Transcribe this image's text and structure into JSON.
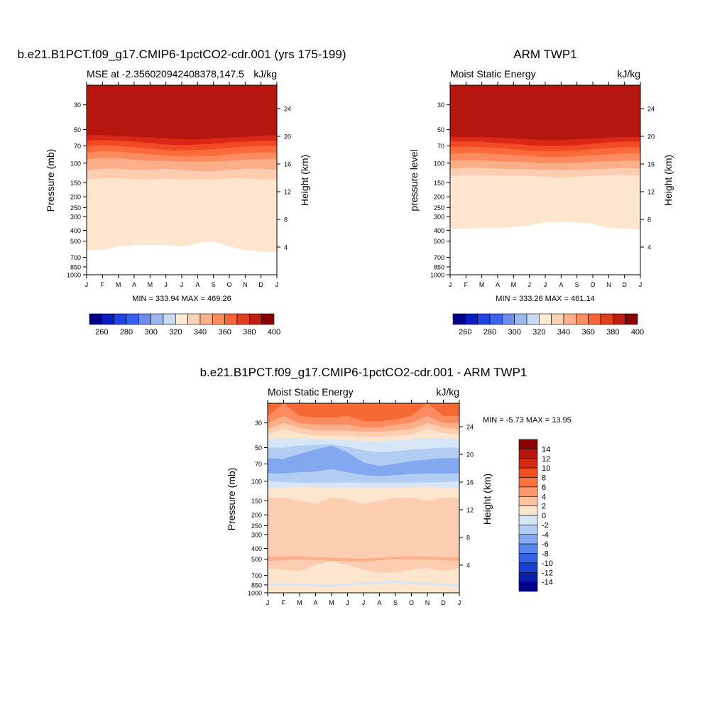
{
  "chart_data": [
    {
      "type": "heatmap",
      "title": "b.e21.B1PCT.f09_g17.CMIP6-1pctCO2-cdr.001 (yrs 175-199)",
      "subtitle_left": "MSE at -2.356020942408378,147.5",
      "units": "kJ/kg",
      "ylabel": "Pressure (mb)",
      "ylabel_right": "Height (km)",
      "x_ticks": [
        "J",
        "F",
        "M",
        "A",
        "M",
        "J",
        "J",
        "A",
        "S",
        "O",
        "N",
        "D",
        "J"
      ],
      "y_ticks": [
        "30",
        "50",
        "70",
        "100",
        "150",
        "200",
        "250",
        "300",
        "400",
        "500",
        "700",
        "850",
        "1000"
      ],
      "y_ticks_right": [
        "24",
        "20",
        "16",
        "12",
        "8",
        "4"
      ],
      "min_max_text": "MIN = 333.94 MAX = 469.26",
      "levels": [
        260,
        270,
        280,
        290,
        300,
        310,
        320,
        330,
        340,
        350,
        360,
        370,
        380,
        390,
        400
      ],
      "colorbar_labels": [
        "260",
        "280",
        "300",
        "320",
        "340",
        "360",
        "380",
        "400"
      ],
      "colorbar_orientation": "horizontal",
      "bands": [
        {
          "value": 335,
          "color": "#FEE5CE",
          "boundary_p": [
            600,
            600,
            560,
            540,
            540,
            540,
            560,
            520,
            500,
            560,
            600,
            620,
            620
          ]
        },
        {
          "value": 345,
          "color": "#FDCDB1",
          "boundary_p": [
            140,
            137,
            137,
            140,
            140,
            138,
            140,
            140,
            140,
            137,
            137,
            140,
            140
          ]
        },
        {
          "value": 355,
          "color": "#FCAE89",
          "boundary_p": [
            115,
            112,
            112,
            115,
            115,
            112,
            115,
            118,
            118,
            115,
            112,
            112,
            115
          ]
        },
        {
          "value": 365,
          "color": "#FC8C5F",
          "boundary_p": [
            92,
            90,
            90,
            93,
            95,
            95,
            97,
            97,
            97,
            95,
            93,
            92,
            92
          ]
        },
        {
          "value": 375,
          "color": "#FB6A3B",
          "boundary_p": [
            80,
            78,
            79,
            81,
            83,
            85,
            87,
            87,
            86,
            83,
            81,
            80,
            80
          ]
        },
        {
          "value": 385,
          "color": "#F14A24",
          "boundary_p": [
            70,
            69,
            70,
            72,
            74,
            76,
            77,
            76,
            75,
            73,
            71,
            70,
            70
          ]
        },
        {
          "value": 395,
          "color": "#DB2717",
          "boundary_p": [
            63,
            62,
            63,
            64,
            66,
            68,
            69,
            68,
            67,
            65,
            64,
            63,
            63
          ]
        },
        {
          "value": 405,
          "color": "#B5160D",
          "boundary_p": [
            56,
            56,
            57,
            58,
            59,
            60,
            61,
            61,
            60,
            59,
            58,
            57,
            56
          ]
        },
        {
          "value": 415,
          "color": "#8B0000",
          "boundary_p": [
            20,
            20,
            20,
            20,
            20,
            20,
            20,
            20,
            20,
            20,
            20,
            20,
            20
          ]
        }
      ]
    },
    {
      "type": "heatmap",
      "title": "ARM TWP1",
      "subtitle_left": "Moist Static Energy",
      "units": "kJ/kg",
      "ylabel": "pressure level",
      "ylabel_right": "Height (km)",
      "x_ticks": [
        "J",
        "F",
        "M",
        "A",
        "M",
        "J",
        "J",
        "A",
        "S",
        "O",
        "N",
        "D",
        "J"
      ],
      "y_ticks": [
        "30",
        "50",
        "70",
        "100",
        "150",
        "200",
        "250",
        "300",
        "400",
        "500",
        "700",
        "850",
        "1000"
      ],
      "y_ticks_right": [
        "24",
        "20",
        "16",
        "12",
        "8",
        "4"
      ],
      "min_max_text": "MIN = 333.26 MAX = 461.14",
      "levels": [
        260,
        270,
        280,
        290,
        300,
        310,
        320,
        330,
        340,
        350,
        360,
        370,
        380,
        390,
        400
      ],
      "colorbar_labels": [
        "260",
        "280",
        "300",
        "320",
        "340",
        "360",
        "380",
        "400"
      ],
      "colorbar_orientation": "horizontal",
      "bands": [
        {
          "value": 335,
          "color": "#FEE5CE",
          "boundary_p": [
            390,
            385,
            380,
            380,
            375,
            360,
            340,
            335,
            340,
            350,
            380,
            385,
            390
          ]
        },
        {
          "value": 345,
          "color": "#FDCDB1",
          "boundary_p": [
            130,
            128,
            128,
            130,
            130,
            130,
            132,
            135,
            132,
            130,
            128,
            128,
            130
          ]
        },
        {
          "value": 355,
          "color": "#FCAE89",
          "boundary_p": [
            112,
            110,
            110,
            112,
            113,
            113,
            115,
            116,
            115,
            113,
            112,
            110,
            112
          ]
        },
        {
          "value": 365,
          "color": "#FC8C5F",
          "boundary_p": [
            95,
            94,
            94,
            96,
            97,
            98,
            100,
            100,
            99,
            97,
            96,
            95,
            95
          ]
        },
        {
          "value": 375,
          "color": "#FB6A3B",
          "boundary_p": [
            82,
            81,
            81,
            83,
            84,
            86,
            88,
            88,
            87,
            85,
            83,
            82,
            82
          ]
        },
        {
          "value": 385,
          "color": "#F14A24",
          "boundary_p": [
            72,
            71,
            72,
            73,
            75,
            77,
            78,
            78,
            77,
            75,
            73,
            72,
            72
          ]
        },
        {
          "value": 395,
          "color": "#DB2717",
          "boundary_p": [
            64,
            64,
            64,
            66,
            67,
            69,
            70,
            70,
            69,
            67,
            65,
            64,
            64
          ]
        },
        {
          "value": 405,
          "color": "#B5160D",
          "boundary_p": [
            58,
            58,
            58,
            59,
            60,
            61,
            62,
            62,
            61,
            60,
            59,
            58,
            58
          ]
        },
        {
          "value": 415,
          "color": "#8B0000",
          "boundary_p": [
            20,
            20,
            20,
            20,
            20,
            20,
            20,
            20,
            20,
            20,
            20,
            20,
            20
          ]
        }
      ]
    },
    {
      "type": "heatmap",
      "title": "b.e21.B1PCT.f09_g17.CMIP6-1pctCO2-cdr.001 - ARM TWP1",
      "subtitle_left": "Moist Static Energy",
      "units": "kJ/kg",
      "ylabel": "Pressure (mb)",
      "ylabel_right": "Height (km)",
      "x_ticks": [
        "J",
        "F",
        "M",
        "A",
        "M",
        "J",
        "J",
        "A",
        "S",
        "O",
        "N",
        "D",
        "J"
      ],
      "y_ticks": [
        "30",
        "50",
        "70",
        "100",
        "150",
        "200",
        "250",
        "300",
        "400",
        "500",
        "700",
        "850",
        "1000"
      ],
      "y_ticks_right": [
        "24",
        "20",
        "16",
        "12",
        "8",
        "4"
      ],
      "min_max_text": "MIN =  -5.73 MAX =  13.95",
      "levels": [
        -14,
        -12,
        -10,
        -8,
        -6,
        -4,
        -2,
        0,
        2,
        4,
        6,
        8,
        10,
        12,
        14
      ],
      "colorbar_labels": [
        "14",
        "12",
        "10",
        "8",
        "6",
        "4",
        "2",
        "0",
        "-2",
        "-4",
        "-6",
        "-8",
        "-10",
        "-12",
        "-14"
      ],
      "colorbar_orientation": "vertical",
      "bands": [
        {
          "value": 1,
          "color": "#FEE5CE",
          "boundary_p": [
            1000,
            1000,
            1000,
            1000,
            1000,
            1000,
            1000,
            1000,
            1000,
            1000,
            1000,
            1000,
            1000
          ]
        },
        {
          "value": -1,
          "color": "#D6E6F6",
          "boundary_p": [
            870,
            860,
            870,
            880,
            885,
            870,
            850,
            830,
            820,
            830,
            850,
            870,
            880
          ]
        },
        {
          "value": 1,
          "color": "#FEE5CE",
          "boundary_p": [
            830,
            820,
            830,
            840,
            845,
            830,
            810,
            790,
            780,
            790,
            810,
            830,
            840
          ]
        },
        {
          "value": 3,
          "color": "#FDCDB1",
          "boundary_p": [
            600,
            620,
            640,
            560,
            520,
            560,
            620,
            660,
            660,
            620,
            600,
            640,
            600
          ]
        },
        {
          "value": 5,
          "color": "#FCAE89",
          "boundary_p": [
            520,
            510,
            500,
            510,
            515,
            520,
            525,
            510,
            500,
            500,
            505,
            510,
            520
          ]
        },
        {
          "value": 3,
          "color": "#FDCDB1",
          "boundary_p": [
            480,
            470,
            470,
            480,
            485,
            490,
            495,
            485,
            475,
            470,
            475,
            480,
            480
          ]
        },
        {
          "value": 1,
          "color": "#FEE5CE",
          "boundary_p": [
            140,
            140,
            150,
            160,
            140,
            145,
            160,
            150,
            140,
            140,
            150,
            140,
            140
          ]
        },
        {
          "value": -1,
          "color": "#D6E6F6",
          "boundary_p": [
            115,
            115,
            112,
            112,
            115,
            115,
            115,
            115,
            115,
            112,
            112,
            115,
            115
          ]
        },
        {
          "value": -3,
          "color": "#B2CDF4",
          "boundary_p": [
            100,
            102,
            103,
            103,
            103,
            102,
            103,
            103,
            103,
            103,
            102,
            102,
            100
          ]
        },
        {
          "value": -5,
          "color": "#83A8F0",
          "boundary_p": [
            85,
            85,
            83,
            82,
            78,
            83,
            88,
            90,
            88,
            86,
            85,
            85,
            85
          ]
        },
        {
          "value": -3,
          "color": "#B2CDF4",
          "boundary_p": [
            62,
            63,
            57,
            52,
            48,
            55,
            68,
            73,
            70,
            66,
            64,
            62,
            62
          ]
        },
        {
          "value": -1,
          "color": "#D6E6F6",
          "boundary_p": [
            50,
            50,
            48,
            47,
            47,
            49,
            53,
            55,
            54,
            52,
            51,
            50,
            50
          ]
        },
        {
          "value": 1,
          "color": "#FEE5CE",
          "boundary_p": [
            42,
            41,
            41,
            42,
            42,
            43,
            44,
            44,
            43,
            42,
            41,
            41,
            42
          ]
        },
        {
          "value": 3,
          "color": "#FDCDB1",
          "boundary_p": [
            38,
            34,
            37,
            39,
            39,
            39,
            40,
            40,
            39,
            38,
            34,
            37,
            38
          ]
        },
        {
          "value": 5,
          "color": "#FCAE89",
          "boundary_p": [
            34,
            30,
            33,
            35,
            35,
            35,
            36,
            36,
            35,
            34,
            30,
            33,
            34
          ]
        },
        {
          "value": 7,
          "color": "#FC8C5F",
          "boundary_p": [
            30,
            26,
            30,
            31,
            31,
            31,
            33,
            33,
            31,
            30,
            26,
            30,
            30
          ]
        },
        {
          "value": 9,
          "color": "#F56A34",
          "boundary_p": [
            26,
            20,
            26,
            27,
            27,
            26,
            29,
            29,
            28,
            26,
            20,
            26,
            26
          ]
        },
        {
          "value": 11,
          "color": "#E33F16",
          "boundary_p": [
            20,
            20,
            20,
            20,
            20,
            20,
            20,
            20,
            20,
            20,
            20,
            20,
            20
          ]
        }
      ]
    }
  ],
  "colormaps": {
    "mse": [
      "#00008B",
      "#0A1DC4",
      "#1F44E3",
      "#3A62F0",
      "#6D8DEC",
      "#9DB8F0",
      "#C8DBF5",
      "#FEEBD3",
      "#FDD1B6",
      "#FCB08C",
      "#FC8C61",
      "#F76538",
      "#E23E1E",
      "#BF1D0F",
      "#8B0000"
    ],
    "diff": [
      "#8B0000",
      "#B5160D",
      "#D52A11",
      "#F05020",
      "#FB7440",
      "#FC9A6E",
      "#FDC3A0",
      "#FEE5CE",
      "#D6E6F6",
      "#B2CDF4",
      "#83A8F0",
      "#5A86EC",
      "#3563E6",
      "#1B40CF",
      "#0B1FA8",
      "#00008B"
    ]
  }
}
